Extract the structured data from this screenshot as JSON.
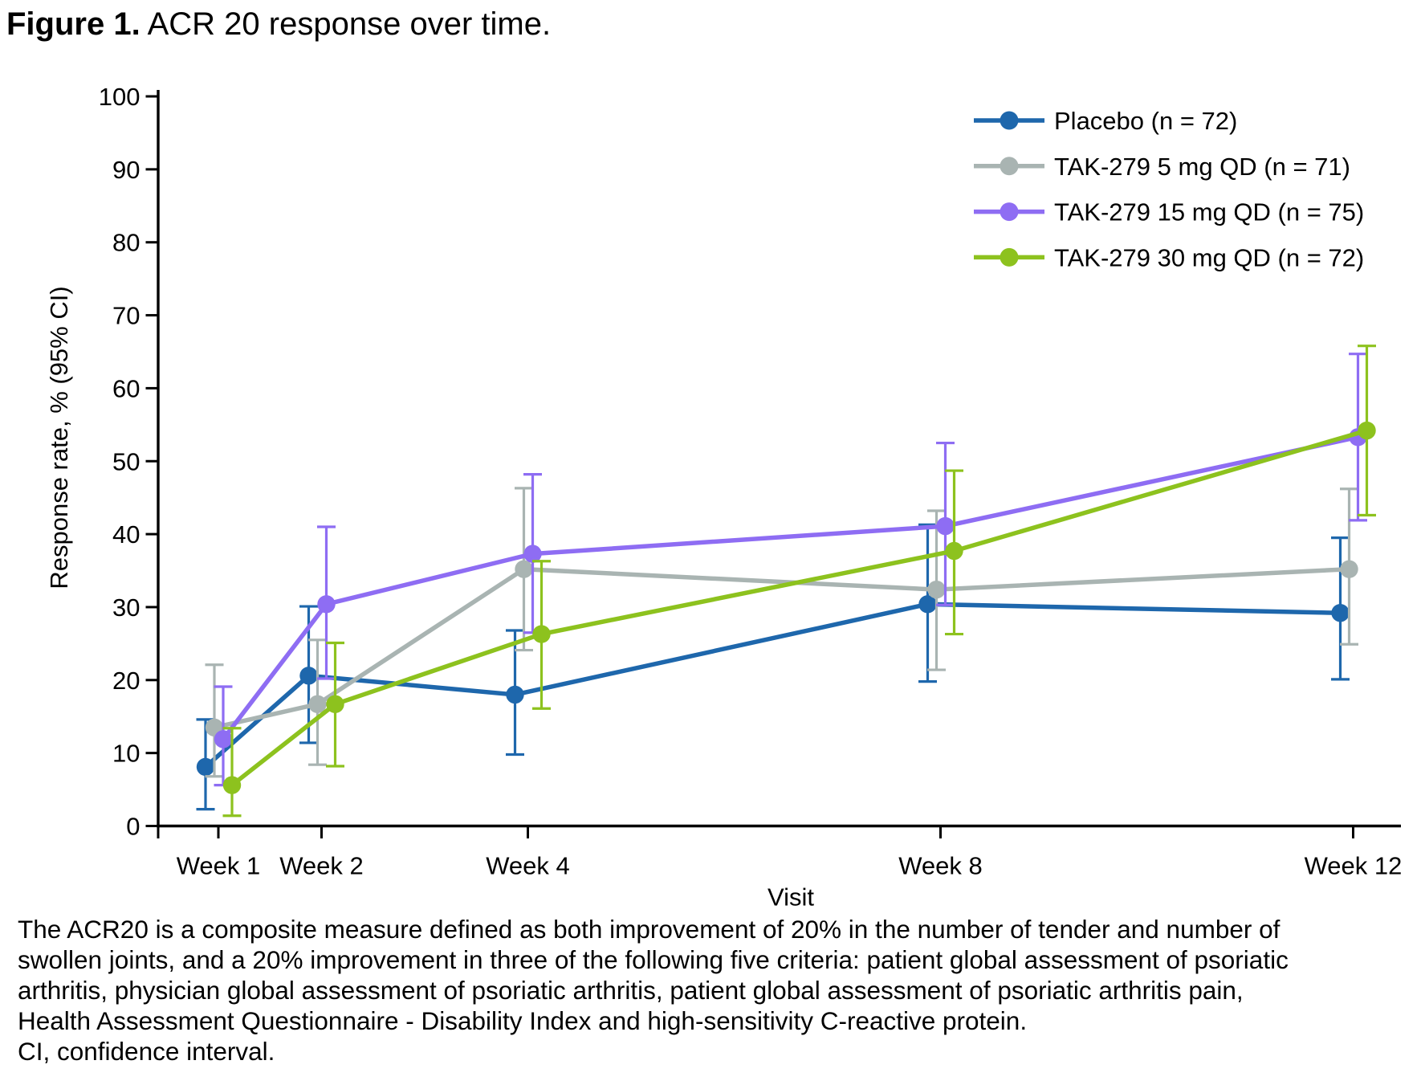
{
  "title": {
    "prefix": "Figure 1.",
    "text": " ACR 20 response over time."
  },
  "chart_data": {
    "type": "line",
    "x": [
      1,
      2,
      4,
      8,
      12
    ],
    "x_tick_labels": [
      "Week 1",
      "Week 2",
      "Week 4",
      "Week 8",
      "Week 12"
    ],
    "xlabel": "Visit",
    "ylabel": "Response rate, % (95% CI)",
    "ylim": [
      0,
      100
    ],
    "y_ticks": [
      0,
      10,
      20,
      30,
      40,
      50,
      60,
      70,
      80,
      90,
      100
    ],
    "grid": "off",
    "legend_position": "top-right-inside",
    "error_bars": "95% CI",
    "series": [
      {
        "name": "Placebo (n = 72)",
        "slug": "placebo",
        "color": "#1e67ac",
        "values": [
          8.1,
          20.6,
          18.0,
          30.4,
          29.2
        ],
        "ci_low": [
          2.3,
          11.4,
          9.8,
          19.8,
          20.1
        ],
        "ci_high": [
          14.6,
          30.1,
          26.8,
          41.3,
          39.5
        ]
      },
      {
        "name": "TAK-279 5 mg QD (n = 71)",
        "slug": "tak279-5mg",
        "color": "#a9b4b2",
        "values": [
          13.5,
          16.7,
          35.2,
          32.4,
          35.2
        ],
        "ci_low": [
          6.8,
          8.4,
          24.1,
          21.4,
          24.9
        ],
        "ci_high": [
          22.1,
          25.5,
          46.3,
          43.2,
          46.2
        ]
      },
      {
        "name": "TAK-279 15 mg QD (n = 75)",
        "slug": "tak279-15mg",
        "color": "#8e6df3",
        "values": [
          11.9,
          30.4,
          37.3,
          41.1,
          53.3
        ],
        "ci_low": [
          5.6,
          20.2,
          26.5,
          30.3,
          41.9
        ],
        "ci_high": [
          19.1,
          41.0,
          48.2,
          52.5,
          64.7
        ]
      },
      {
        "name": "TAK-279 30 mg QD (n = 72)",
        "slug": "tak279-30mg",
        "color": "#8dc21e",
        "values": [
          5.6,
          16.7,
          26.3,
          37.7,
          54.2
        ],
        "ci_low": [
          1.4,
          8.2,
          16.1,
          26.3,
          42.6
        ],
        "ci_high": [
          13.4,
          25.1,
          36.3,
          48.7,
          65.8
        ]
      }
    ]
  },
  "footnote_lines": [
    "The ACR20 is a composite measure defined as both improvement of 20% in the number of tender and number of",
    "swollen joints, and a 20% improvement in three of the following five criteria: patient global assessment of psoriatic",
    "arthritis, physician global assessment of psoriatic arthritis, patient global assessment of psoriatic arthritis pain,",
    "Health Assessment Questionnaire - Disability Index and high-sensitivity C-reactive protein.",
    "CI, confidence interval."
  ]
}
